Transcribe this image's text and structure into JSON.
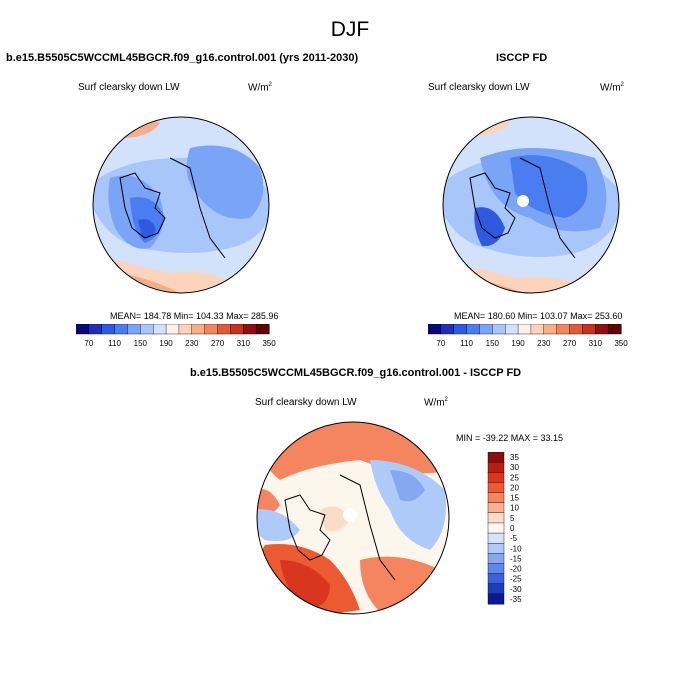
{
  "season": "DJF",
  "panels": [
    {
      "title": "b.e15.B5505C5WCCML45BGCR.f09_g16.control.001 (yrs 2011-2030)",
      "variable": "Surf clearsky down LW",
      "units": "W/m",
      "units_exp": "2",
      "stats": "MEAN= 184.78   Min= 104.33   Max= 285.96",
      "colorbar_labels": [
        "70",
        "110",
        "150",
        "190",
        "230",
        "270",
        "310",
        "350"
      ]
    },
    {
      "title": "ISCCP FD",
      "variable": "Surf clearsky down LW",
      "units": "W/m",
      "units_exp": "2",
      "stats": "MEAN= 180.60   Min= 103.07   Max= 253.60",
      "colorbar_labels": [
        "70",
        "110",
        "150",
        "190",
        "230",
        "270",
        "310",
        "350"
      ]
    }
  ],
  "diff": {
    "title": "b.e15.B5505C5WCCML45BGCR.f09_g16.control.001 - ISCCP FD",
    "variable": "Surf clearsky down LW",
    "units": "W/m",
    "units_exp": "2",
    "stats": "MIN = -39.22 MAX =  33.15",
    "colorbar_labels": [
      "35",
      "30",
      "25",
      "20",
      "15",
      "10",
      "5",
      "0",
      "-5",
      "-10",
      "-15",
      "-20",
      "-25",
      "-30",
      "-35"
    ]
  },
  "colors": {
    "seq": [
      "#08087a",
      "#1c30b8",
      "#2f5ae0",
      "#4a7ef0",
      "#7aa4f6",
      "#a8c6fa",
      "#d2e2fb",
      "#fdf0e6",
      "#fbd4bb",
      "#f6ae8a",
      "#ee8760",
      "#e05a3a",
      "#c4321e",
      "#8e1010",
      "#5c0505"
    ],
    "div": [
      "#8a0e0e",
      "#b81e12",
      "#d8361e",
      "#ec5a34",
      "#f5855e",
      "#f8b090",
      "#fbdcc8",
      "#fdf6ec",
      "#d6e4fa",
      "#aecaf8",
      "#86a8f2",
      "#5f86ea",
      "#3a60de",
      "#1d3cbe",
      "#0a1a90"
    ]
  }
}
